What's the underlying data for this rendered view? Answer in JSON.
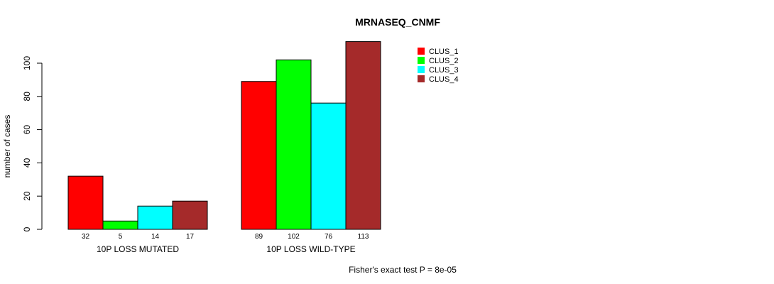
{
  "chart_data": {
    "type": "bar",
    "title": "MRNASEQ_CNMF",
    "xlabel": "",
    "ylabel": "number of cases",
    "ylim": [
      0,
      113
    ],
    "yticks": [
      0,
      20,
      40,
      60,
      80,
      100
    ],
    "categories": [
      "10P LOSS MUTATED",
      "10P LOSS WILD-TYPE"
    ],
    "series": [
      {
        "name": "CLUS_1",
        "color": "#ff0000",
        "values": [
          32,
          89
        ]
      },
      {
        "name": "CLUS_2",
        "color": "#00ff00",
        "values": [
          5,
          102
        ]
      },
      {
        "name": "CLUS_3",
        "color": "#00ffff",
        "values": [
          14,
          76
        ]
      },
      {
        "name": "CLUS_4",
        "color": "#a52a2a",
        "values": [
          17,
          113
        ]
      }
    ],
    "legend_position": "top-right",
    "annotation": "Fisher's exact test P = 8e-05"
  }
}
